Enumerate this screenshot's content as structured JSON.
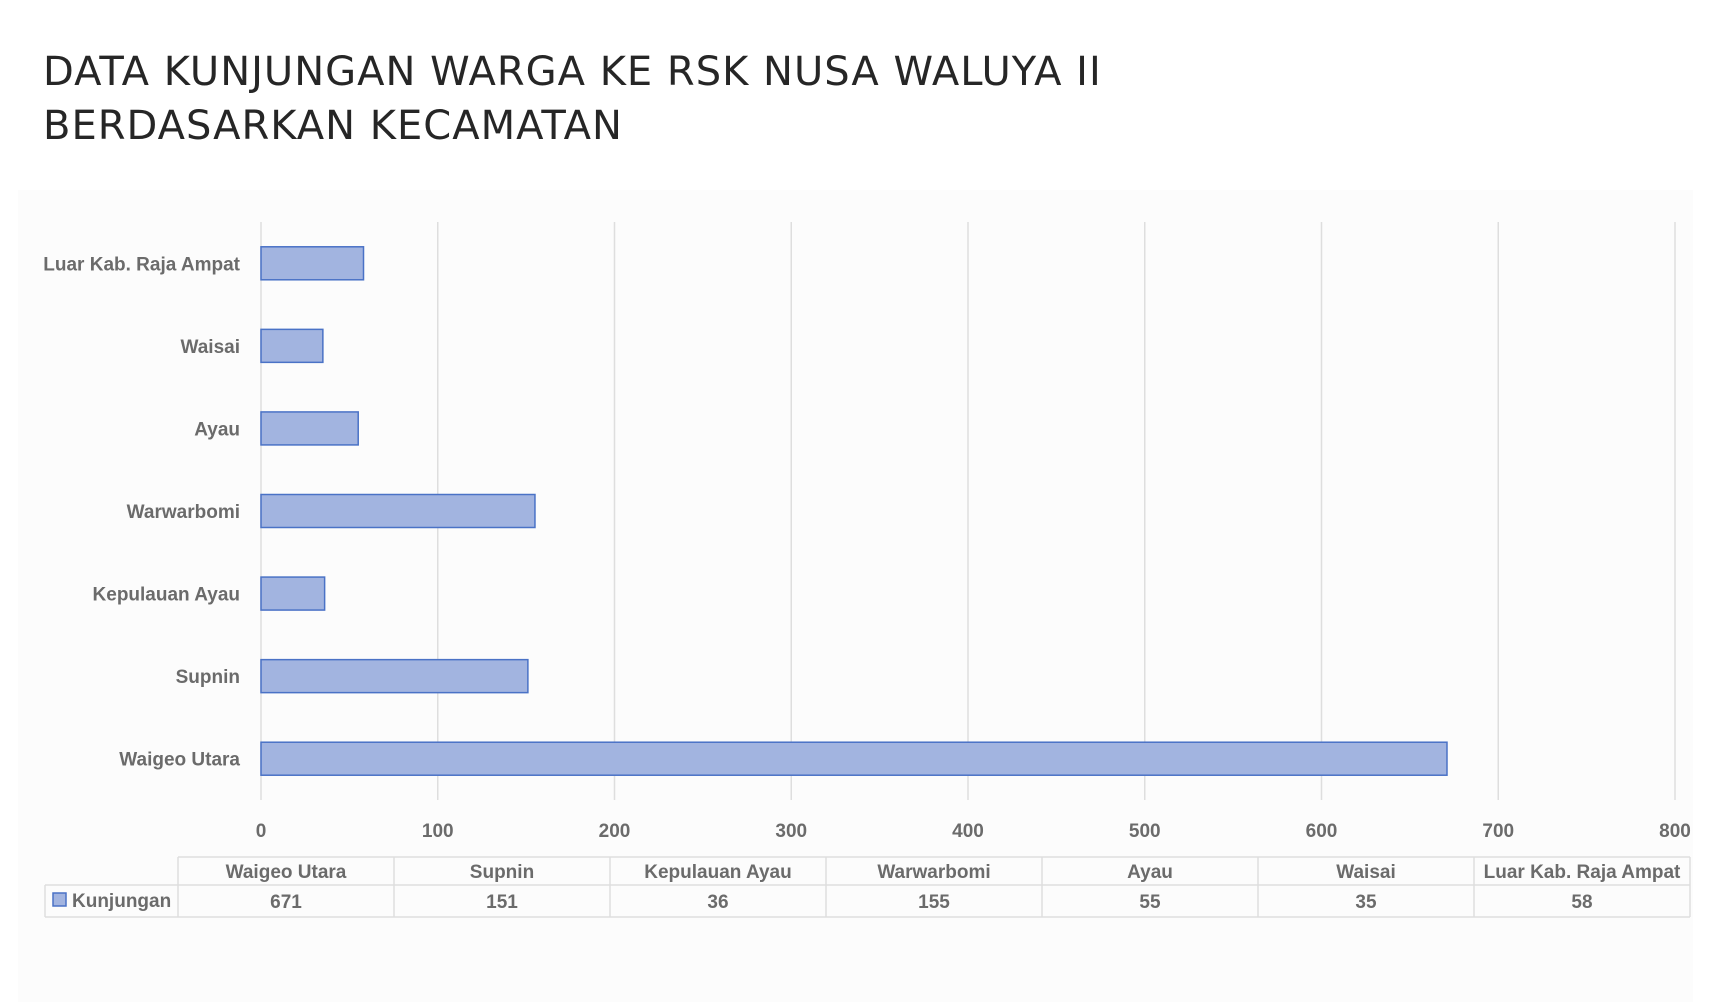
{
  "title": {
    "line1": "DATA KUNJUNGAN WARGA KE RSK NUSA WALUYA II",
    "line2": "BERDASARKAN KECAMATAN"
  },
  "colors": {
    "bar_fill": "#a2b4e0",
    "bar_stroke": "#4a72c6",
    "grid": "#dedede",
    "text": "#6b6b6b",
    "title": "#262626"
  },
  "chart_data": {
    "type": "bar",
    "orientation": "horizontal",
    "title": "DATA KUNJUNGAN WARGA KE RSK NUSA WALUYA II BERDASARKAN KECAMATAN",
    "categories": [
      "Waigeo Utara",
      "Supnin",
      "Kepulauan Ayau",
      "Warwarbomi",
      "Ayau",
      "Waisai",
      "Luar Kab. Raja Ampat"
    ],
    "series": [
      {
        "name": "Kunjungan",
        "values": [
          671,
          151,
          36,
          155,
          55,
          35,
          58
        ]
      }
    ],
    "xlim": [
      0,
      800
    ],
    "xticks": [
      0,
      100,
      200,
      300,
      400,
      500,
      600,
      700,
      800
    ],
    "grid": true,
    "legend": "data-table",
    "data_table": true
  }
}
